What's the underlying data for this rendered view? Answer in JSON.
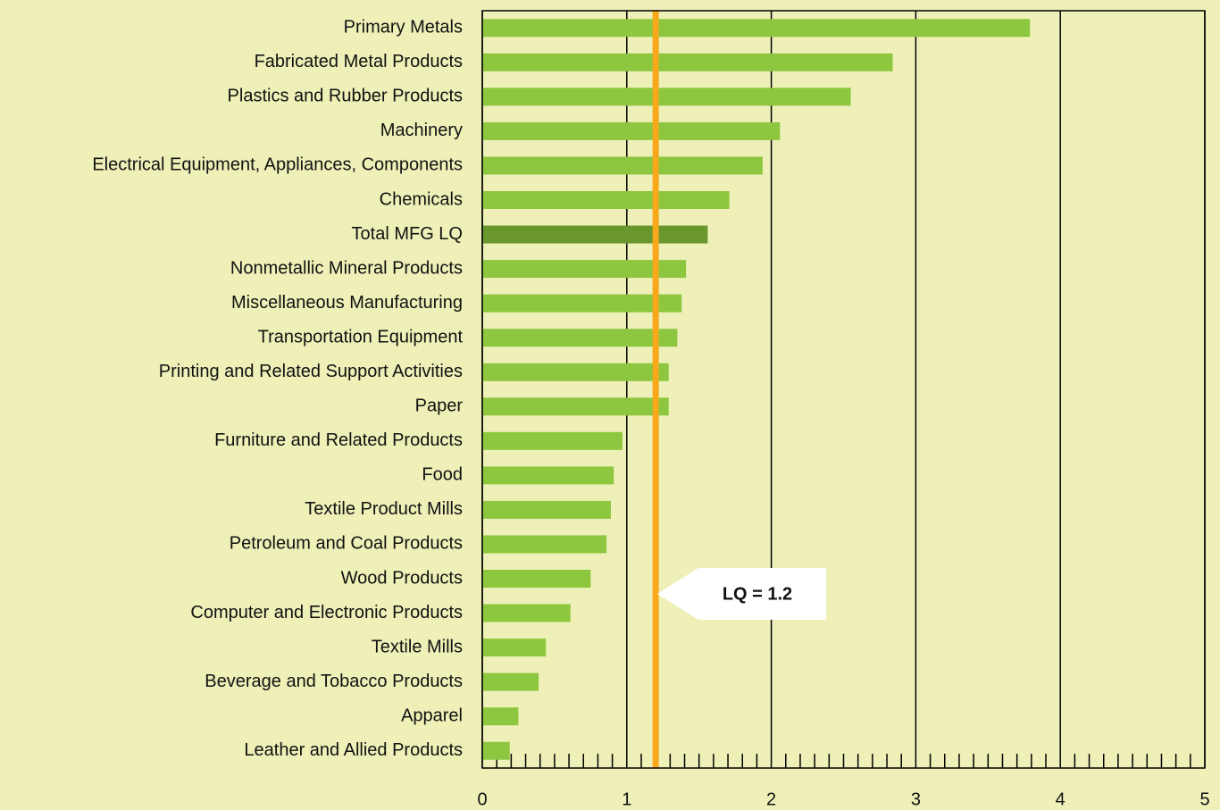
{
  "chart_data": {
    "type": "bar",
    "orientation": "horizontal",
    "categories": [
      "Primary Metals",
      "Fabricated Metal Products",
      "Plastics and Rubber Products",
      "Machinery",
      "Electrical Equipment, Appliances, Components",
      "Chemicals",
      "Total MFG LQ",
      "Nonmetallic Mineral Products",
      "Miscellaneous Manufacturing",
      "Transportation Equipment",
      "Printing and Related Support Activities",
      "Paper",
      "Furniture and Related Products",
      "Food",
      "Textile Product Mills",
      "Petroleum and Coal Products",
      "Wood Products",
      "Computer and Electronic Products",
      "Textile Mills",
      "Beverage and Tobacco Products",
      "Apparel",
      "Leather and Allied Products"
    ],
    "values": [
      3.79,
      2.84,
      2.55,
      2.06,
      1.94,
      1.71,
      1.56,
      1.41,
      1.38,
      1.35,
      1.29,
      1.29,
      0.97,
      0.91,
      0.89,
      0.86,
      0.75,
      0.61,
      0.44,
      0.39,
      0.25,
      0.19
    ],
    "colors": [
      "#8dc63f",
      "#8dc63f",
      "#8dc63f",
      "#8dc63f",
      "#8dc63f",
      "#8dc63f",
      "#6a962e",
      "#8dc63f",
      "#8dc63f",
      "#8dc63f",
      "#8dc63f",
      "#8dc63f",
      "#8dc63f",
      "#8dc63f",
      "#8dc63f",
      "#8dc63f",
      "#8dc63f",
      "#8dc63f",
      "#8dc63f",
      "#8dc63f",
      "#8dc63f",
      "#8dc63f"
    ],
    "xlim": [
      0,
      5
    ],
    "xticks": [
      0,
      1,
      2,
      3,
      4,
      5
    ],
    "grid": true,
    "reference_line": {
      "value": 1.2,
      "label": "LQ = 1.2",
      "color": "#f7a81b"
    }
  }
}
